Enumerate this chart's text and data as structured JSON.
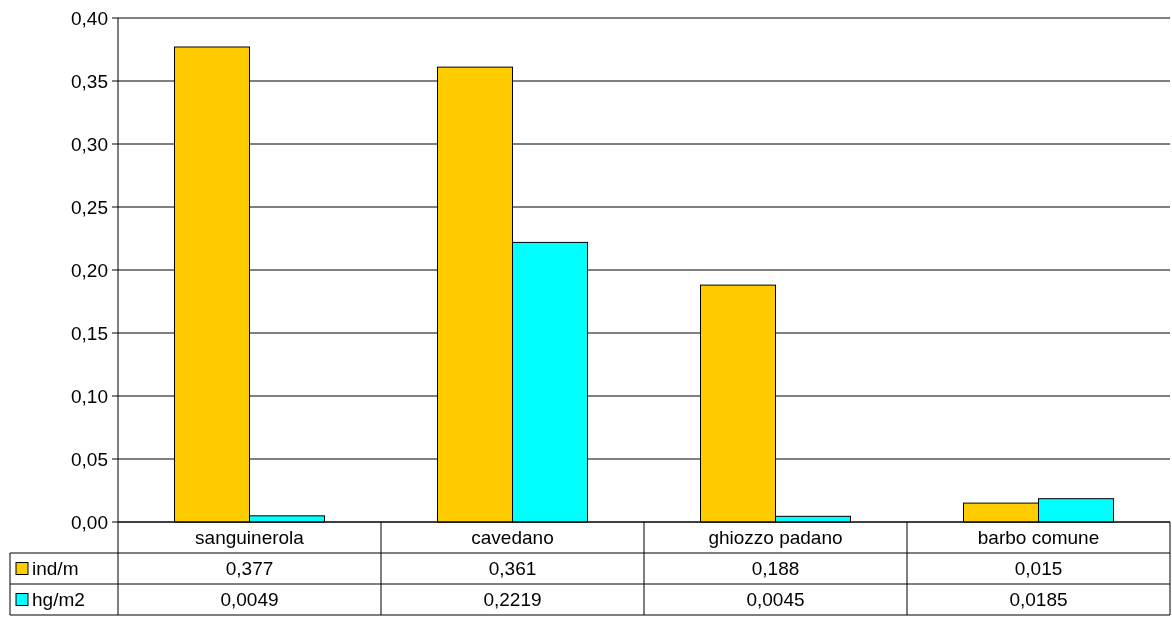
{
  "chart_data": {
    "type": "bar",
    "categories": [
      "sanguinerola",
      "cavedano",
      "ghiozzo padano",
      "barbo comune"
    ],
    "series": [
      {
        "name": "ind/m",
        "color": "#ffcc00",
        "values": [
          0.377,
          0.361,
          0.188,
          0.015
        ],
        "value_labels": [
          "0,377",
          "0,361",
          "0,188",
          "0,015"
        ]
      },
      {
        "name": "hg/m2",
        "color": "#00ffff",
        "values": [
          0.0049,
          0.2219,
          0.0045,
          0.0185
        ],
        "value_labels": [
          "0,0049",
          "0,2219",
          "0,0045",
          "0,0185"
        ]
      }
    ],
    "ylim": [
      0,
      0.4
    ],
    "yticks": [
      {
        "value": 0,
        "label": "0,00"
      },
      {
        "value": 0.05,
        "label": "0,05"
      },
      {
        "value": 0.1,
        "label": "0,10"
      },
      {
        "value": 0.15,
        "label": "0,15"
      },
      {
        "value": 0.2,
        "label": "0,20"
      },
      {
        "value": 0.25,
        "label": "0,25"
      },
      {
        "value": 0.3,
        "label": "0,30"
      },
      {
        "value": 0.35,
        "label": "0,35"
      },
      {
        "value": 0.4,
        "label": "0,40"
      }
    ],
    "grid": "y",
    "legend": "bottom"
  }
}
